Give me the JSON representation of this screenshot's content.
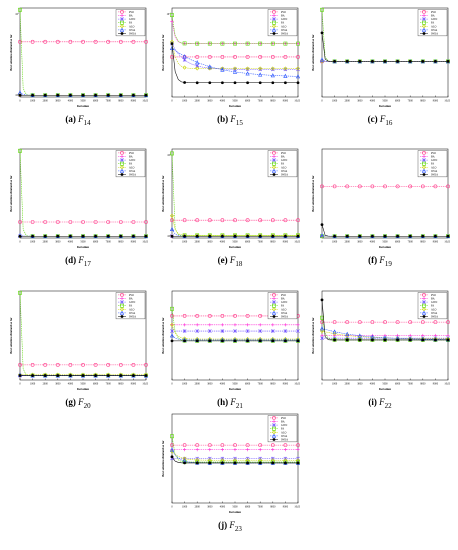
{
  "common": {
    "xlabel": "Iteration",
    "ylabel": "Best solution obtained so far",
    "xticks": [
      "0",
      "1000",
      "2000",
      "3000",
      "4000",
      "5000",
      "6000",
      "7000",
      "8000",
      "9000",
      "10,000"
    ],
    "legend": [
      "PSO",
      "BA",
      "GWO",
      "FA",
      "ALO",
      "WOA",
      "IWOA"
    ],
    "legend_placement": "top-right",
    "colors": {
      "PSO": "#ff3b8a",
      "BA": "#ff2bd6",
      "GWO": "#6b4bff",
      "FA": "#58d800",
      "ALO": "#c8d400",
      "WOA": "#2a55ff",
      "IWOA": "#000000"
    },
    "markers": {
      "PSO": "circle",
      "BA": "plus",
      "GWO": "star",
      "FA": "square",
      "ALO": "diamond",
      "WOA": "triangle",
      "IWOA": "filled-circle"
    }
  },
  "chart_data": [
    {
      "type": "line",
      "label": "(a)",
      "func_base": "F",
      "func_sub": "14",
      "ytick_top": "10^3",
      "ytick_bottom": "10^0",
      "y_scale": "log",
      "series": [
        {
          "name": "PSO",
          "start": 0.62,
          "end": 0.62,
          "decay": 0.02
        },
        {
          "name": "BA",
          "start": 0.02,
          "end": 0.02,
          "decay": 0.02
        },
        {
          "name": "GWO",
          "start": 0.02,
          "end": 0.02,
          "decay": 0.02
        },
        {
          "name": "FA",
          "start": 0.98,
          "end": 0.02,
          "decay": 0.01
        },
        {
          "name": "ALO",
          "start": 0.02,
          "end": 0.02,
          "decay": 0.02
        },
        {
          "name": "WOA",
          "start": 0.05,
          "end": 0.02,
          "decay": 0.02
        },
        {
          "name": "IWOA",
          "start": 0.02,
          "end": 0.02,
          "decay": 0.02
        }
      ]
    },
    {
      "type": "line",
      "label": "(b)",
      "func_base": "F",
      "func_sub": "15",
      "ytick_top": "10^-1",
      "ytick_bottom": "",
      "y_scale": "log",
      "series": [
        {
          "name": "PSO",
          "start": 0.45,
          "end": 0.45,
          "decay": 0.02
        },
        {
          "name": "BA",
          "start": 0.85,
          "end": 0.6,
          "decay": 0.02
        },
        {
          "name": "GWO",
          "start": 0.6,
          "end": 0.31,
          "decay": 0.1
        },
        {
          "name": "FA",
          "start": 0.92,
          "end": 0.6,
          "decay": 0.02
        },
        {
          "name": "ALO",
          "start": 0.62,
          "end": 0.32,
          "decay": 0.03
        },
        {
          "name": "WOA",
          "start": 0.55,
          "end": 0.22,
          "decay": 0.3
        },
        {
          "name": "IWOA",
          "start": 0.6,
          "end": 0.16,
          "decay": 0.02
        }
      ]
    },
    {
      "type": "line",
      "label": "(c)",
      "func_base": "F",
      "func_sub": "16",
      "ytick_top": "",
      "ytick_bottom": "",
      "y_scale": "linear",
      "series": [
        {
          "name": "PSO",
          "start": 0.4,
          "end": 0.4,
          "decay": 0.01
        },
        {
          "name": "BA",
          "start": 0.4,
          "end": 0.4,
          "decay": 0.01
        },
        {
          "name": "GWO",
          "start": 0.4,
          "end": 0.4,
          "decay": 0.01
        },
        {
          "name": "FA",
          "start": 0.98,
          "end": 0.4,
          "decay": 0.01
        },
        {
          "name": "ALO",
          "start": 0.4,
          "end": 0.4,
          "decay": 0.01
        },
        {
          "name": "WOA",
          "start": 0.42,
          "end": 0.4,
          "decay": 0.01
        },
        {
          "name": "IWOA",
          "start": 0.72,
          "end": 0.4,
          "decay": 0.01
        }
      ]
    },
    {
      "type": "line",
      "label": "(d)",
      "func_base": "F",
      "func_sub": "17",
      "ytick_top": "",
      "ytick_bottom": "",
      "y_scale": "linear",
      "series": [
        {
          "name": "PSO",
          "start": 0.18,
          "end": 0.18,
          "decay": 0.02
        },
        {
          "name": "BA",
          "start": 0.02,
          "end": 0.02,
          "decay": 0.02
        },
        {
          "name": "GWO",
          "start": 0.02,
          "end": 0.02,
          "decay": 0.02
        },
        {
          "name": "FA",
          "start": 0.98,
          "end": 0.02,
          "decay": 0.01
        },
        {
          "name": "ALO",
          "start": 0.02,
          "end": 0.02,
          "decay": 0.02
        },
        {
          "name": "WOA",
          "start": 0.03,
          "end": 0.02,
          "decay": 0.02
        },
        {
          "name": "IWOA",
          "start": 0.02,
          "end": 0.02,
          "decay": 0.02
        }
      ]
    },
    {
      "type": "line",
      "label": "(e)",
      "func_base": "F",
      "func_sub": "18",
      "ytick_top": "10^3",
      "ytick_bottom": "10^0",
      "y_scale": "log",
      "series": [
        {
          "name": "PSO",
          "start": 0.2,
          "end": 0.2,
          "decay": 0.02
        },
        {
          "name": "BA",
          "start": 0.02,
          "end": 0.02,
          "decay": 0.02
        },
        {
          "name": "GWO",
          "start": 0.02,
          "end": 0.02,
          "decay": 0.02
        },
        {
          "name": "FA",
          "start": 0.95,
          "end": 0.03,
          "decay": 0.01
        },
        {
          "name": "ALO",
          "start": 0.25,
          "end": 0.03,
          "decay": 0.02
        },
        {
          "name": "WOA",
          "start": 0.1,
          "end": 0.02,
          "decay": 0.02
        },
        {
          "name": "IWOA",
          "start": 0.02,
          "end": 0.02,
          "decay": 0.02
        }
      ]
    },
    {
      "type": "line",
      "label": "(f)",
      "func_base": "F",
      "func_sub": "19",
      "ytick_top": "",
      "ytick_bottom": "",
      "y_scale": "linear",
      "series": [
        {
          "name": "PSO",
          "start": 0.58,
          "end": 0.58,
          "decay": 0.02
        },
        {
          "name": "BA",
          "start": 0.02,
          "end": 0.02,
          "decay": 0.02
        },
        {
          "name": "GWO",
          "start": 0.02,
          "end": 0.02,
          "decay": 0.02
        },
        {
          "name": "FA",
          "start": 0.02,
          "end": 0.02,
          "decay": 0.02
        },
        {
          "name": "ALO",
          "start": 0.02,
          "end": 0.02,
          "decay": 0.02
        },
        {
          "name": "WOA",
          "start": 0.03,
          "end": 0.02,
          "decay": 0.02
        },
        {
          "name": "IWOA",
          "start": 0.15,
          "end": 0.02,
          "decay": 0.01
        }
      ]
    },
    {
      "type": "line",
      "label": "(g)",
      "func_base": "F",
      "func_sub": "20",
      "ytick_top": "",
      "ytick_bottom": "",
      "y_scale": "linear",
      "series": [
        {
          "name": "PSO",
          "start": 0.17,
          "end": 0.17,
          "decay": 0.02
        },
        {
          "name": "BA",
          "start": 0.05,
          "end": 0.05,
          "decay": 0.02
        },
        {
          "name": "GWO",
          "start": 0.05,
          "end": 0.05,
          "decay": 0.02
        },
        {
          "name": "FA",
          "start": 0.98,
          "end": 0.05,
          "decay": 0.01
        },
        {
          "name": "ALO",
          "start": 0.06,
          "end": 0.06,
          "decay": 0.02
        },
        {
          "name": "WOA",
          "start": 0.06,
          "end": 0.05,
          "decay": 0.02
        },
        {
          "name": "IWOA",
          "start": 0.05,
          "end": 0.05,
          "decay": 0.02
        }
      ]
    },
    {
      "type": "line",
      "label": "(h)",
      "func_base": "F",
      "func_sub": "21",
      "ytick_top": "",
      "ytick_bottom": "",
      "y_scale": "linear",
      "series": [
        {
          "name": "PSO",
          "start": 0.72,
          "end": 0.72,
          "decay": 0.02
        },
        {
          "name": "BA",
          "start": 0.62,
          "end": 0.62,
          "decay": 0.02
        },
        {
          "name": "GWO",
          "start": 0.55,
          "end": 0.55,
          "decay": 0.02
        },
        {
          "name": "FA",
          "start": 0.8,
          "end": 0.44,
          "decay": 0.02
        },
        {
          "name": "ALO",
          "start": 0.62,
          "end": 0.46,
          "decay": 0.03
        },
        {
          "name": "WOA",
          "start": 0.5,
          "end": 0.45,
          "decay": 0.03
        },
        {
          "name": "IWOA",
          "start": 0.44,
          "end": 0.44,
          "decay": 0.02
        }
      ]
    },
    {
      "type": "line",
      "label": "(i)",
      "func_base": "F",
      "func_sub": "22",
      "ytick_top": "",
      "ytick_bottom": "",
      "y_scale": "linear",
      "series": [
        {
          "name": "PSO",
          "start": 0.65,
          "end": 0.65,
          "decay": 0.02
        },
        {
          "name": "BA",
          "start": 0.5,
          "end": 0.5,
          "decay": 0.02
        },
        {
          "name": "GWO",
          "start": 0.47,
          "end": 0.47,
          "decay": 0.02
        },
        {
          "name": "FA",
          "start": 0.7,
          "end": 0.45,
          "decay": 0.02
        },
        {
          "name": "ALO",
          "start": 0.55,
          "end": 0.46,
          "decay": 0.25
        },
        {
          "name": "WOA",
          "start": 0.58,
          "end": 0.45,
          "decay": 0.3
        },
        {
          "name": "IWOA",
          "start": 0.9,
          "end": 0.45,
          "decay": 0.01
        }
      ]
    },
    {
      "type": "line",
      "label": "(j)",
      "func_base": "F",
      "func_sub": "23",
      "ytick_top": "",
      "ytick_bottom": "",
      "y_scale": "linear",
      "series": [
        {
          "name": "PSO",
          "start": 0.65,
          "end": 0.65,
          "decay": 0.02
        },
        {
          "name": "BA",
          "start": 0.6,
          "end": 0.6,
          "decay": 0.02
        },
        {
          "name": "GWO",
          "start": 0.5,
          "end": 0.5,
          "decay": 0.02
        },
        {
          "name": "FA",
          "start": 0.75,
          "end": 0.46,
          "decay": 0.02
        },
        {
          "name": "ALO",
          "start": 0.58,
          "end": 0.48,
          "decay": 0.06
        },
        {
          "name": "WOA",
          "start": 0.6,
          "end": 0.45,
          "decay": 0.05
        },
        {
          "name": "IWOA",
          "start": 0.52,
          "end": 0.45,
          "decay": 0.02
        }
      ]
    }
  ]
}
